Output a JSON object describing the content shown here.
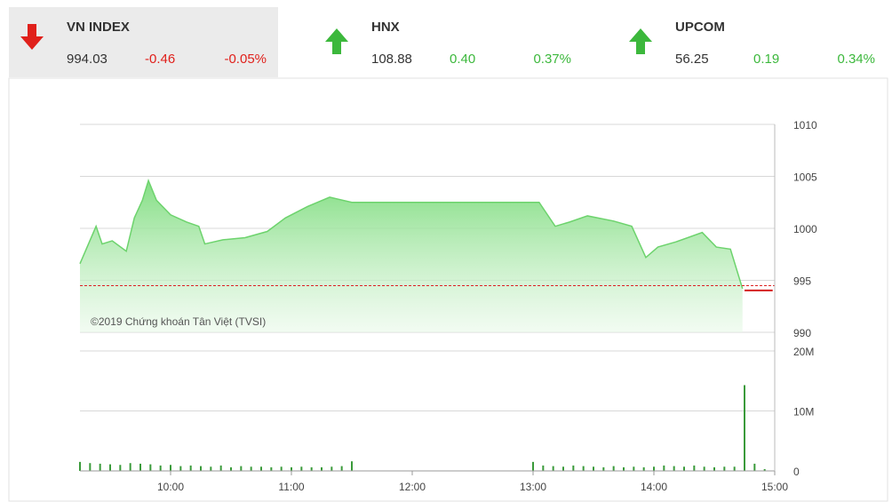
{
  "indices": [
    {
      "name": "VN INDEX",
      "price": "994.03",
      "change": "-0.46",
      "percent": "-0.05%",
      "color": "#e0201b"
    },
    {
      "name": "HNX",
      "price": "108.88",
      "change": "0.40",
      "percent": "0.37%",
      "color": "#3cb83c"
    },
    {
      "name": "UPCOM",
      "price": "56.25",
      "change": "0.19",
      "percent": "0.34%",
      "color": "#3cb83c"
    }
  ],
  "chart_data": [
    {
      "type": "line",
      "annotation": "©2019 Chứng khoán Tân Việt (TVSI)",
      "xlim": [
        555,
        900
      ],
      "ylim": [
        990,
        1010
      ],
      "yticks": [
        990,
        995,
        1000,
        1005,
        1010
      ],
      "grid": true,
      "reference": 994.49,
      "reference_color": "#d22",
      "series": [
        {
          "color": "#6dd36d",
          "x": [
            555,
            563,
            566,
            571,
            578,
            582,
            586,
            589,
            593,
            600,
            608,
            614,
            617,
            626,
            637,
            648,
            657,
            668,
            679,
            690,
            783,
            791,
            798,
            807,
            820,
            829,
            836,
            842,
            851,
            864,
            871,
            878,
            884
          ],
          "values": [
            996.6,
            1000.2,
            998.5,
            998.8,
            997.8,
            1001.0,
            1002.7,
            1004.6,
            1002.7,
            1001.3,
            1000.6,
            1000.2,
            998.5,
            998.9,
            999.1,
            999.7,
            1001.0,
            1002.1,
            1003.0,
            1002.5,
            1002.5,
            1000.2,
            1000.6,
            1001.2,
            1000.7,
            1000.2,
            997.2,
            998.2,
            998.7,
            999.6,
            998.2,
            998.0,
            994.2
          ]
        },
        {
          "color": "#d42020",
          "x": [
            885,
            899
          ],
          "values": [
            994.03,
            994.03
          ]
        }
      ]
    },
    {
      "type": "bar",
      "color": "#3a9a3a",
      "xlim": [
        555,
        900
      ],
      "ylim": [
        0,
        20000000
      ],
      "yticks": [
        0,
        {
          "value": 10000000,
          "label": "10M"
        },
        {
          "value": 20000000,
          "label": "20M"
        }
      ],
      "xticks": [
        {
          "value": 600,
          "label": "10:00"
        },
        {
          "value": 660,
          "label": "11:00"
        },
        {
          "value": 720,
          "label": "12:00"
        },
        {
          "value": 780,
          "label": "13:00"
        },
        {
          "value": 840,
          "label": "14:00"
        },
        {
          "value": 900,
          "label": "15:00"
        }
      ],
      "grid": true,
      "x": [
        555,
        560,
        565,
        570,
        575,
        580,
        585,
        590,
        595,
        600,
        605,
        610,
        615,
        620,
        625,
        630,
        635,
        640,
        645,
        650,
        655,
        660,
        665,
        670,
        675,
        680,
        685,
        690,
        780,
        785,
        790,
        795,
        800,
        805,
        810,
        815,
        820,
        825,
        830,
        835,
        840,
        845,
        850,
        855,
        860,
        865,
        870,
        875,
        880,
        885,
        890,
        895
      ],
      "values": [
        1500000,
        1300000,
        1200000,
        1100000,
        1000000,
        1300000,
        1200000,
        1100000,
        900000,
        1000000,
        800000,
        900000,
        800000,
        700000,
        900000,
        600000,
        800000,
        700000,
        700000,
        600000,
        700000,
        600000,
        700000,
        600000,
        600000,
        700000,
        800000,
        1600000,
        1500000,
        900000,
        800000,
        700000,
        900000,
        800000,
        700000,
        600000,
        800000,
        600000,
        700000,
        600000,
        700000,
        900000,
        800000,
        700000,
        900000,
        700000,
        600000,
        700000,
        700000,
        14300000,
        1200000,
        300000
      ]
    }
  ]
}
